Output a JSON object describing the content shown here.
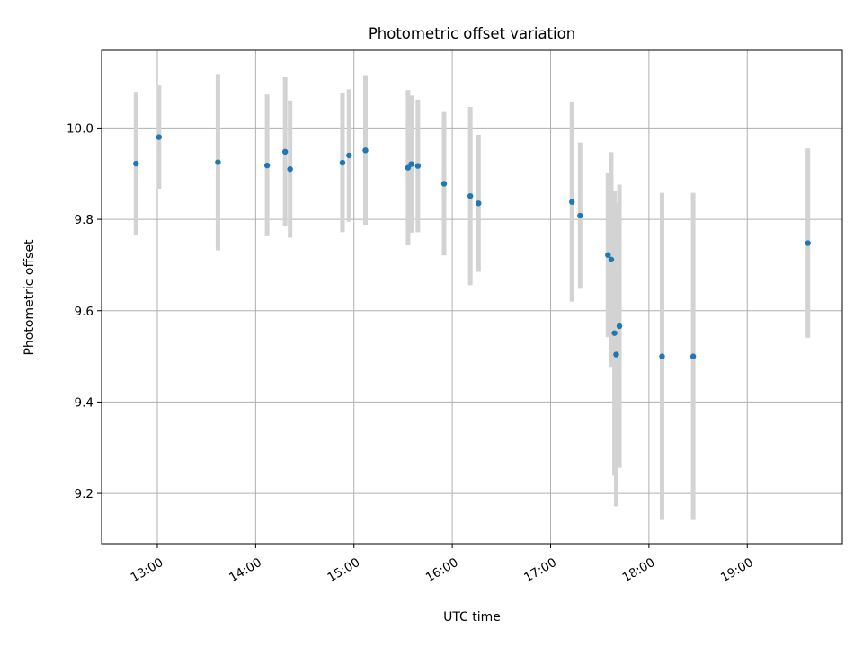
{
  "chart_data": {
    "type": "scatter",
    "title": "Photometric offset variation",
    "xlabel": "UTC time",
    "ylabel": "Photometric offset",
    "xlim": [
      "12:26",
      "19:58"
    ],
    "ylim": [
      9.09,
      10.17
    ],
    "grid": true,
    "x_ticks": [
      "13:00",
      "14:00",
      "15:00",
      "16:00",
      "17:00",
      "18:00",
      "19:00"
    ],
    "y_ticks": [
      9.2,
      9.4,
      9.6,
      9.8,
      10.0
    ],
    "y_tick_labels": [
      "9.2",
      "9.4",
      "9.6",
      "9.8",
      "10.0"
    ],
    "colors": {
      "point": "#1f77b4",
      "errorbar": "#d3d3d3",
      "grid": "#b0b0b0"
    },
    "series": [
      {
        "points": [
          {
            "x": "12:47",
            "y": 9.922,
            "yerr": 0.157
          },
          {
            "x": "13:01",
            "y": 9.98,
            "yerr": 0.113
          },
          {
            "x": "13:37",
            "y": 9.925,
            "yerr": 0.193
          },
          {
            "x": "14:07",
            "y": 9.918,
            "yerr": 0.155
          },
          {
            "x": "14:18",
            "y": 9.948,
            "yerr": 0.163
          },
          {
            "x": "14:21",
            "y": 9.91,
            "yerr": 0.15
          },
          {
            "x": "14:53",
            "y": 9.924,
            "yerr": 0.152
          },
          {
            "x": "14:57",
            "y": 9.94,
            "yerr": 0.145
          },
          {
            "x": "15:07",
            "y": 9.951,
            "yerr": 0.163
          },
          {
            "x": "15:33",
            "y": 9.913,
            "yerr": 0.17
          },
          {
            "x": "15:35",
            "y": 9.921,
            "yerr": 0.15
          },
          {
            "x": "15:39",
            "y": 9.917,
            "yerr": 0.145
          },
          {
            "x": "15:55",
            "y": 9.878,
            "yerr": 0.157
          },
          {
            "x": "16:11",
            "y": 9.851,
            "yerr": 0.195
          },
          {
            "x": "16:16",
            "y": 9.835,
            "yerr": 0.15
          },
          {
            "x": "17:13",
            "y": 9.838,
            "yerr": 0.218
          },
          {
            "x": "17:18",
            "y": 9.808,
            "yerr": 0.16
          },
          {
            "x": "17:35",
            "y": 9.722,
            "yerr": 0.18
          },
          {
            "x": "17:37",
            "y": 9.712,
            "yerr": 0.235
          },
          {
            "x": "17:39",
            "y": 9.551,
            "yerr": 0.312
          },
          {
            "x": "17:40",
            "y": 9.504,
            "yerr": 0.332
          },
          {
            "x": "17:42",
            "y": 9.566,
            "yerr": 0.31
          },
          {
            "x": "18:08",
            "y": 9.5,
            "yerr": 0.358
          },
          {
            "x": "18:27",
            "y": 9.5,
            "yerr": 0.358
          },
          {
            "x": "19:37",
            "y": 9.748,
            "yerr": 0.207
          }
        ]
      }
    ]
  }
}
